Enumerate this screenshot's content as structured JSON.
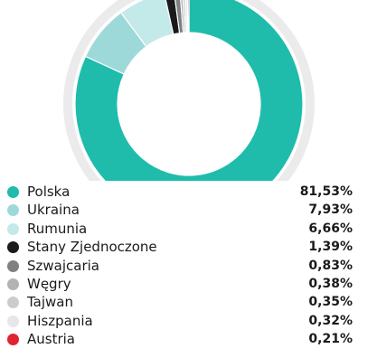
{
  "chart_data": {
    "type": "pie",
    "categories": [
      "Polska",
      "Ukraina",
      "Rumunia",
      "Stany Zjednoczone",
      "Szwajcaria",
      "Węgry",
      "Tajwan",
      "Hiszpania",
      "Austria"
    ],
    "values": [
      81.53,
      7.93,
      6.66,
      1.39,
      0.83,
      0.38,
      0.35,
      0.32,
      0.21
    ],
    "value_labels": [
      "81,53%",
      "7,93%",
      "6,66%",
      "1,39%",
      "0,83%",
      "0,38%",
      "0,35%",
      "0,32%",
      "0,21%"
    ],
    "colors": [
      "#1fbcac",
      "#9ed9d9",
      "#c3e9e9",
      "#1a1a1a",
      "#808080",
      "#b3b3b3",
      "#cccccc",
      "#e6e6ec",
      "#e0242f"
    ],
    "ring_color": "#ebebeb",
    "legend": "bottom",
    "title": ""
  }
}
